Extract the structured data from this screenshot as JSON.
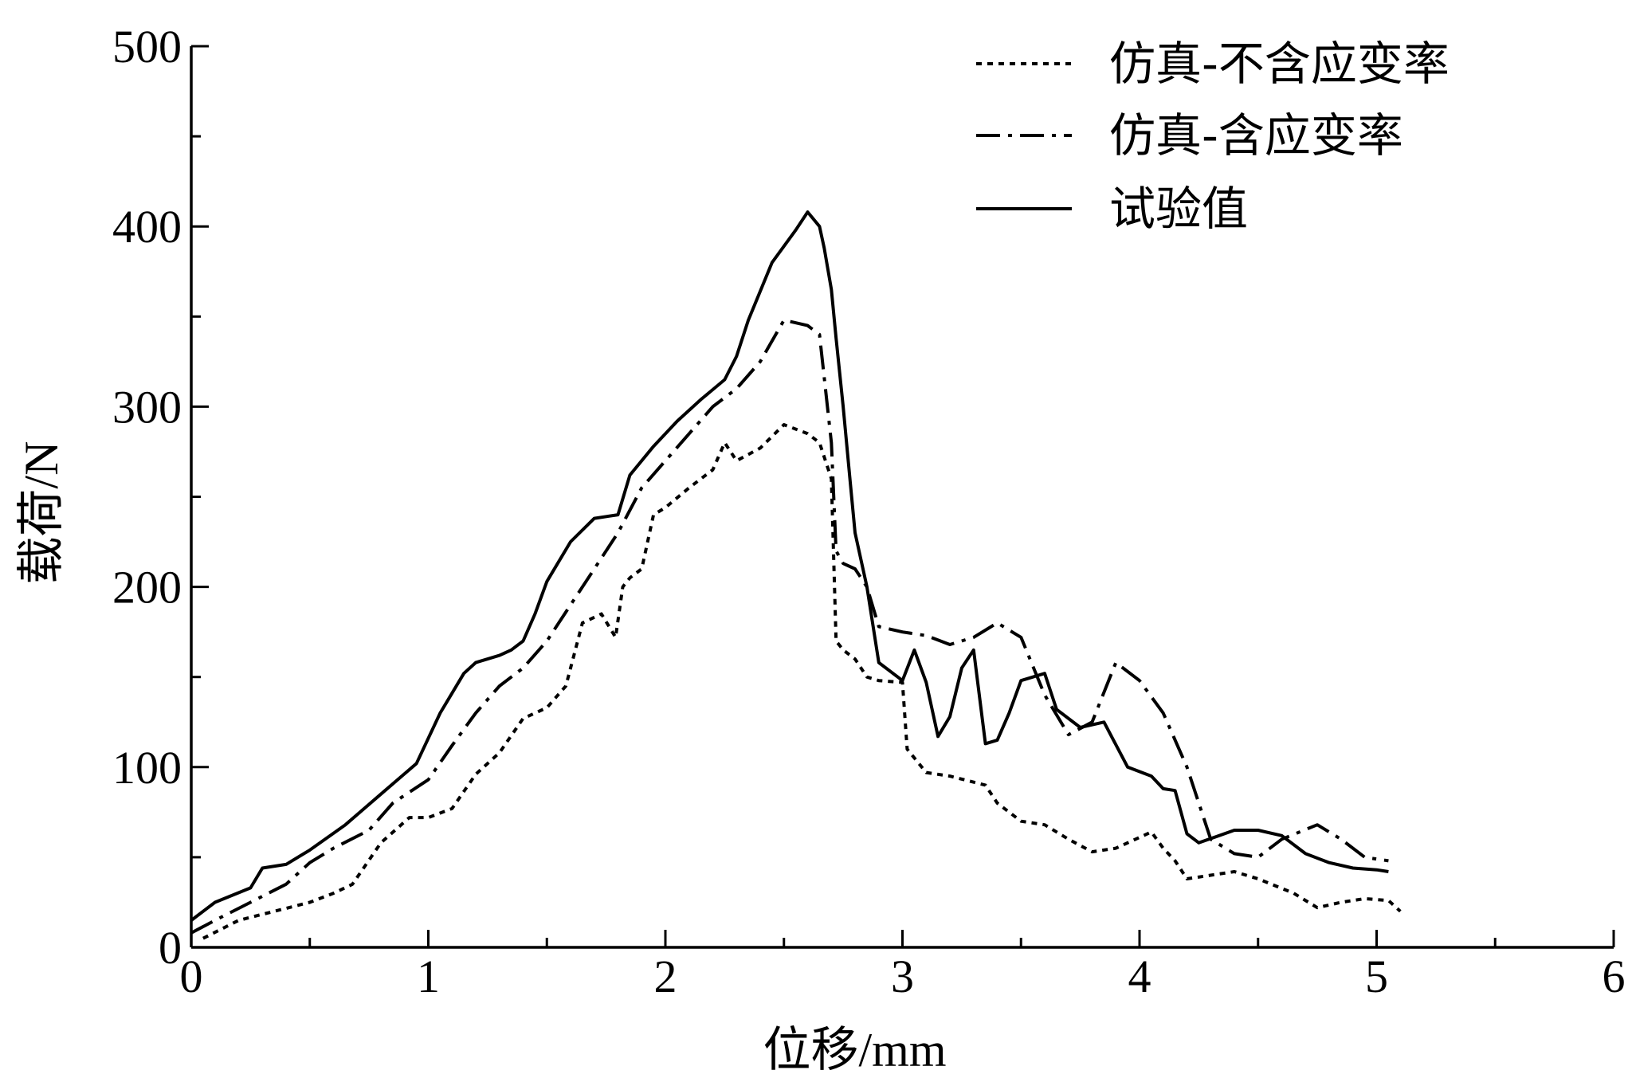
{
  "chart_data": {
    "type": "line",
    "xlabel": "位移/mm",
    "ylabel": "载荷/N",
    "xlim": [
      0,
      6
    ],
    "ylim": [
      0,
      500
    ],
    "xticks": [
      0,
      1,
      2,
      3,
      4,
      5,
      6
    ],
    "yticks": [
      0,
      100,
      200,
      300,
      400,
      500
    ],
    "grid": false,
    "legend_position": "top-right",
    "series": [
      {
        "name": "仿真-不含应变率",
        "style": "dotted",
        "color": "#000000",
        "x": [
          0.05,
          0.2,
          0.35,
          0.5,
          0.6,
          0.68,
          0.8,
          0.92,
          1.0,
          1.1,
          1.2,
          1.3,
          1.4,
          1.5,
          1.58,
          1.65,
          1.73,
          1.79,
          1.82,
          1.85,
          1.9,
          1.95,
          2.0,
          2.1,
          2.2,
          2.25,
          2.3,
          2.4,
          2.5,
          2.6,
          2.65,
          2.7,
          2.72,
          2.75,
          2.8,
          2.85,
          2.9,
          3.0,
          3.02,
          3.1,
          3.2,
          3.35,
          3.4,
          3.5,
          3.6,
          3.7,
          3.8,
          3.9,
          3.95,
          4.05,
          4.1,
          4.15,
          4.2,
          4.3,
          4.4,
          4.5,
          4.65,
          4.75,
          4.85,
          4.95,
          5.05,
          5.1
        ],
        "y": [
          5,
          15,
          20,
          25,
          30,
          35,
          58,
          72,
          72,
          77,
          96,
          108,
          127,
          133,
          145,
          180,
          185,
          172,
          200,
          205,
          210,
          240,
          244,
          255,
          265,
          280,
          270,
          277,
          290,
          285,
          280,
          260,
          170,
          165,
          160,
          150,
          148,
          147,
          110,
          97,
          95,
          90,
          80,
          70,
          68,
          60,
          53,
          55,
          58,
          64,
          55,
          48,
          38,
          40,
          42,
          38,
          30,
          22,
          25,
          27,
          26,
          20
        ]
      },
      {
        "name": "仿真-含应变率",
        "style": "dash-dot",
        "color": "#000000",
        "x": [
          0,
          0.1,
          0.25,
          0.4,
          0.5,
          0.6,
          0.75,
          0.85,
          1.0,
          1.1,
          1.2,
          1.3,
          1.4,
          1.5,
          1.6,
          1.7,
          1.8,
          1.9,
          2.0,
          2.1,
          2.2,
          2.3,
          2.4,
          2.5,
          2.6,
          2.65,
          2.7,
          2.72,
          2.75,
          2.8,
          2.85,
          2.9,
          3.0,
          3.1,
          3.2,
          3.3,
          3.4,
          3.5,
          3.6,
          3.7,
          3.8,
          3.9,
          4.0,
          4.1,
          4.2,
          4.3,
          4.4,
          4.5,
          4.6,
          4.75,
          4.85,
          4.95,
          5.05
        ],
        "y": [
          8,
          15,
          25,
          35,
          47,
          55,
          65,
          80,
          93,
          112,
          130,
          145,
          155,
          170,
          190,
          210,
          230,
          255,
          270,
          285,
          300,
          310,
          325,
          348,
          345,
          340,
          280,
          220,
          213,
          210,
          200,
          178,
          175,
          173,
          168,
          172,
          180,
          172,
          140,
          118,
          125,
          158,
          148,
          130,
          100,
          60,
          52,
          50,
          60,
          68,
          60,
          50,
          48
        ]
      },
      {
        "name": "试验值",
        "style": "solid",
        "color": "#000000",
        "x": [
          0,
          0.1,
          0.25,
          0.3,
          0.4,
          0.5,
          0.65,
          0.8,
          0.95,
          1.05,
          1.15,
          1.2,
          1.3,
          1.35,
          1.4,
          1.45,
          1.5,
          1.6,
          1.7,
          1.8,
          1.85,
          1.95,
          2.05,
          2.15,
          2.25,
          2.3,
          2.35,
          2.45,
          2.55,
          2.6,
          2.65,
          2.67,
          2.7,
          2.72,
          2.75,
          2.78,
          2.8,
          2.85,
          2.9,
          3.0,
          3.05,
          3.1,
          3.15,
          3.2,
          3.25,
          3.3,
          3.35,
          3.4,
          3.45,
          3.5,
          3.6,
          3.65,
          3.75,
          3.85,
          3.95,
          4.05,
          4.1,
          4.15,
          4.2,
          4.25,
          4.4,
          4.5,
          4.6,
          4.7,
          4.8,
          4.9,
          5.0,
          5.05
        ],
        "y": [
          15,
          25,
          33,
          44,
          46,
          54,
          68,
          85,
          102,
          130,
          152,
          158,
          162,
          165,
          170,
          185,
          203,
          225,
          238,
          240,
          262,
          278,
          292,
          304,
          315,
          328,
          348,
          380,
          398,
          408,
          400,
          388,
          365,
          338,
          300,
          258,
          230,
          200,
          158,
          148,
          165,
          147,
          117,
          128,
          155,
          165,
          113,
          115,
          130,
          148,
          152,
          132,
          122,
          125,
          100,
          95,
          88,
          87,
          63,
          58,
          65,
          65,
          62,
          52,
          47,
          44,
          43,
          42
        ]
      }
    ]
  }
}
